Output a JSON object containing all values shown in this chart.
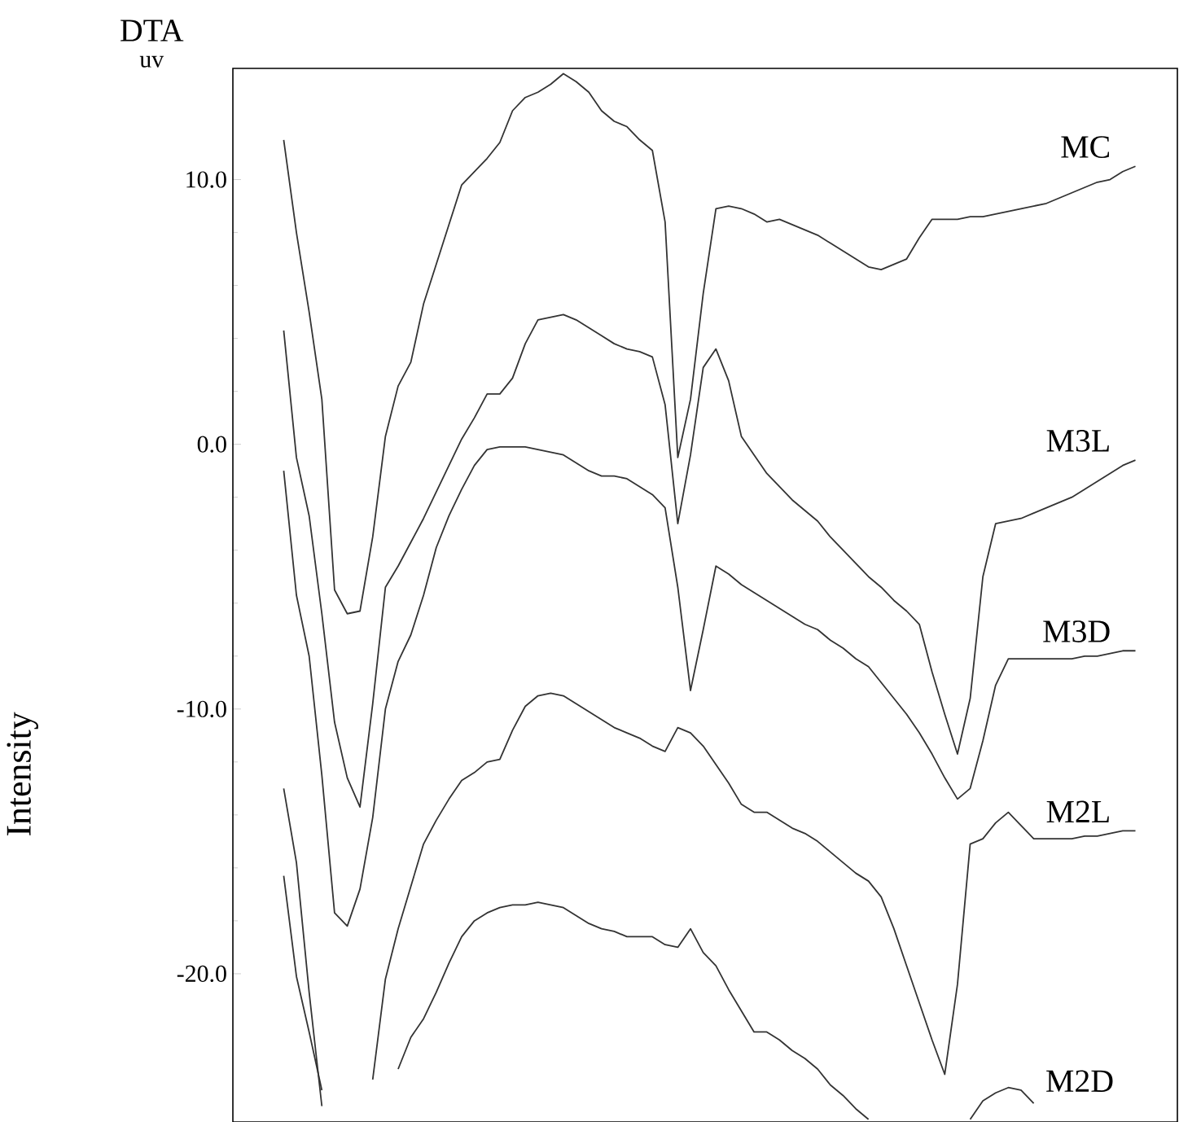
{
  "chart_data": {
    "type": "line",
    "title": "DTA",
    "ylabel": "Intensity",
    "annotations": [
      "uv"
    ],
    "ylim": [
      -25.6,
      14.2
    ],
    "tick_labels": "y",
    "line_style": "solid",
    "categories": [
      null,
      null,
      null,
      null,
      null,
      null,
      null,
      null,
      null,
      null,
      null,
      null,
      null,
      null,
      null,
      null,
      null,
      null,
      null,
      null,
      null,
      null,
      null,
      null,
      null,
      null,
      null,
      null,
      null,
      null,
      null,
      null,
      null,
      null,
      null,
      null,
      null,
      null,
      null,
      null,
      null,
      null,
      null,
      null,
      null,
      null,
      null,
      null,
      null,
      null,
      null,
      null,
      null,
      null,
      null,
      null,
      null,
      null,
      null,
      null,
      null,
      null,
      null,
      null,
      null,
      null,
      null,
      null
    ],
    "yticks": [
      {
        "value": -20,
        "label": "-20.0"
      },
      {
        "value": -10,
        "label": "-10.0"
      },
      {
        "value": 0,
        "label": "0.0"
      },
      {
        "value": 10,
        "label": "10.0"
      }
    ],
    "series": [
      {
        "name": "MC",
        "color": "#333333",
        "values": [
          11.5,
          8.0,
          5.0,
          1.7,
          -5.5,
          -6.4,
          -6.3,
          -3.5,
          0.3,
          2.2,
          3.1,
          5.3,
          6.8,
          8.3,
          9.8,
          10.3,
          10.8,
          11.4,
          12.6,
          13.1,
          13.3,
          13.6,
          14.0,
          13.7,
          13.3,
          12.6,
          12.2,
          12.0,
          11.5,
          11.1,
          8.4,
          -0.5,
          1.7,
          5.7,
          8.9,
          9.0,
          8.9,
          8.7,
          8.4,
          8.5,
          8.3,
          8.1,
          7.9,
          7.6,
          7.3,
          7.0,
          6.7,
          6.6,
          6.8,
          7.0,
          7.8,
          8.5,
          8.5,
          8.5,
          8.6,
          8.6,
          8.7,
          8.8,
          8.9,
          9.0,
          9.1,
          9.3,
          9.5,
          9.7,
          9.9,
          10.0,
          10.3,
          10.5
        ]
      },
      {
        "name": "M3L",
        "color": "#333333",
        "values": [
          4.3,
          -0.5,
          -2.7,
          -6.4,
          -10.5,
          -12.6,
          -13.7,
          -9.8,
          -5.4,
          -4.6,
          -3.7,
          -2.8,
          -1.8,
          -0.8,
          0.2,
          1.0,
          1.9,
          1.9,
          2.5,
          3.8,
          4.7,
          4.8,
          4.9,
          4.7,
          4.4,
          4.1,
          3.8,
          3.6,
          3.5,
          3.3,
          1.5,
          -3.0,
          -0.4,
          2.9,
          3.6,
          2.4,
          0.3,
          -0.4,
          -1.1,
          -1.6,
          -2.1,
          -2.5,
          -2.9,
          -3.5,
          -4.0,
          -4.5,
          -5.0,
          -5.4,
          -5.9,
          -6.3,
          -6.8,
          -8.6,
          -10.2,
          -11.7,
          -9.6,
          -5.0,
          -3.0,
          -2.9,
          -2.8,
          -2.6,
          -2.4,
          -2.2,
          -2.0,
          -1.7,
          -1.4,
          -1.1,
          -0.8,
          -0.6
        ]
      },
      {
        "name": "M3D",
        "color": "#333333",
        "values": [
          -1.0,
          -5.7,
          -8.0,
          -12.5,
          -17.7,
          -18.2,
          -16.8,
          -14.1,
          -10.0,
          -8.2,
          -7.2,
          -5.7,
          -3.9,
          -2.7,
          -1.7,
          -0.8,
          -0.2,
          -0.1,
          -0.1,
          -0.1,
          -0.2,
          -0.3,
          -0.4,
          -0.7,
          -1.0,
          -1.2,
          -1.2,
          -1.3,
          -1.6,
          -1.9,
          -2.4,
          -5.4,
          -9.3,
          -7.0,
          -4.6,
          -4.9,
          -5.3,
          -5.6,
          -5.9,
          -6.2,
          -6.5,
          -6.8,
          -7.0,
          -7.4,
          -7.7,
          -8.1,
          -8.4,
          -9.0,
          -9.6,
          -10.2,
          -10.9,
          -11.7,
          -12.6,
          -13.4,
          -13.0,
          -11.2,
          -9.1,
          -8.1,
          -8.1,
          -8.1,
          -8.1,
          -8.1,
          -8.1,
          -8.0,
          -8.0,
          -7.9,
          -7.8,
          -7.8
        ]
      },
      {
        "name": "M2L",
        "color": "#333333",
        "values": [
          -13.0,
          -15.8,
          -20.7,
          -25.0,
          null,
          null,
          null,
          -24.0,
          -20.2,
          -18.3,
          -16.7,
          -15.1,
          -14.2,
          -13.4,
          -12.7,
          -12.4,
          -12.0,
          -11.9,
          -10.8,
          -9.9,
          -9.5,
          -9.4,
          -9.5,
          -9.8,
          -10.1,
          -10.4,
          -10.7,
          -10.9,
          -11.1,
          -11.4,
          -11.6,
          -10.7,
          -10.9,
          -11.4,
          -12.1,
          -12.8,
          -13.6,
          -13.9,
          -13.9,
          -14.2,
          -14.5,
          -14.7,
          -15.0,
          -15.4,
          -15.8,
          -16.2,
          -16.5,
          -17.1,
          -18.3,
          -19.7,
          -21.1,
          -22.5,
          -23.8,
          -20.4,
          -15.1,
          -14.9,
          -14.3,
          -13.9,
          -14.4,
          -14.9,
          -14.9,
          -14.9,
          -14.9,
          -14.8,
          -14.8,
          -14.7,
          -14.6,
          -14.6
        ]
      },
      {
        "name": "M2D",
        "color": "#333333",
        "values": [
          -16.3,
          -20.1,
          -22.2,
          -24.4,
          null,
          null,
          null,
          null,
          null,
          -23.6,
          -22.4,
          -21.7,
          -20.7,
          -19.6,
          -18.6,
          -18.0,
          -17.7,
          -17.5,
          -17.4,
          -17.4,
          -17.3,
          -17.4,
          -17.5,
          -17.8,
          -18.1,
          -18.3,
          -18.4,
          -18.6,
          -18.6,
          -18.6,
          -18.9,
          -19.0,
          -18.3,
          -19.2,
          -19.7,
          -20.6,
          -21.4,
          -22.2,
          -22.2,
          -22.5,
          -22.9,
          -23.2,
          -23.6,
          -24.2,
          -24.6,
          -25.1,
          -25.5,
          null,
          null,
          null,
          null,
          null,
          null,
          null,
          -25.5,
          -24.8,
          -24.5,
          -24.3,
          -24.4,
          -24.9,
          null,
          null,
          null,
          null,
          null,
          null,
          null,
          null
        ]
      }
    ]
  }
}
